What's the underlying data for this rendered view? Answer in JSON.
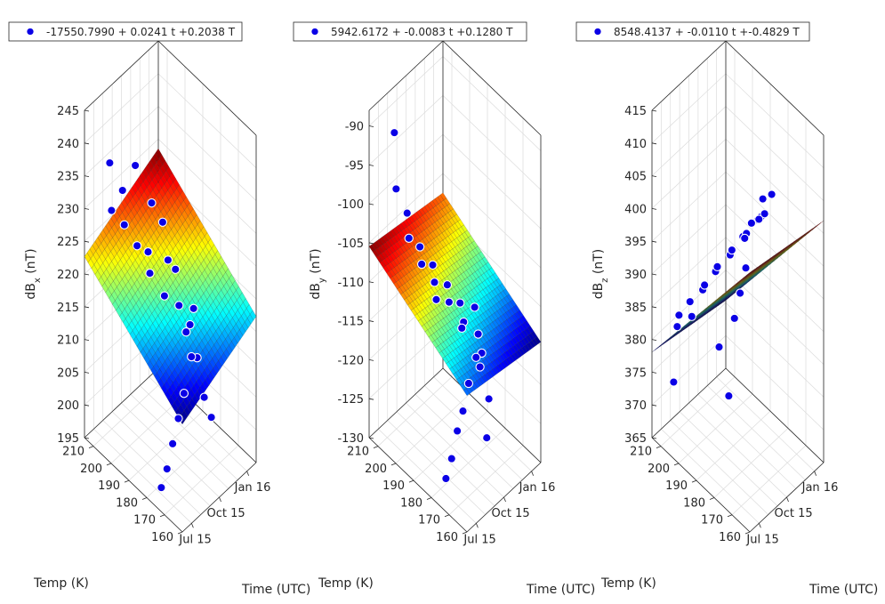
{
  "colors": {
    "points": "#0b00e6",
    "point_edge": "#ffffff",
    "surface_colormap": "jet"
  },
  "shared_axes": {
    "temp_label": "Temp (K)",
    "time_label": "Time (UTC)",
    "temp_ticks": [
      "160",
      "170",
      "180",
      "190",
      "200",
      "210"
    ],
    "time_ticks": [
      "Jul 15",
      "Oct 15",
      "Jan 16"
    ]
  },
  "chart_data": [
    {
      "type": "scatter",
      "subtype": "scatter3d-with-fitted-plane",
      "legend": {
        "text": "-17550.7990 + 0.0241 t +0.2038 T",
        "placement": "top"
      },
      "zlabel": "dB_x (nT)",
      "zlabel_main": "dB",
      "zlabel_sub": "x",
      "zlabel_unit": " (nT)",
      "z_ticks": [
        "195",
        "200",
        "205",
        "210",
        "215",
        "220",
        "225",
        "230",
        "235",
        "240",
        "245"
      ],
      "zlim": [
        195,
        245
      ],
      "xlim": [
        160,
        215
      ],
      "ylim": [
        "Jun 15",
        "Feb 16"
      ],
      "fit": {
        "intercept": -17550.799,
        "coef_t": 0.0241,
        "coef_T": 0.2038
      },
      "points": [
        {
          "T": 205,
          "t": "Jul 15",
          "B": 231
        },
        {
          "T": 204,
          "t": "Aug 15",
          "B": 233
        },
        {
          "T": 203,
          "t": "Aug 15",
          "B": 228
        },
        {
          "T": 202,
          "t": "Sep 15",
          "B": 236
        },
        {
          "T": 201,
          "t": "Sep 15",
          "B": 224
        },
        {
          "T": 200,
          "t": "Oct 15",
          "B": 222
        },
        {
          "T": 199,
          "t": "Oct 15",
          "B": 219
        },
        {
          "T": 197,
          "t": "Nov 15",
          "B": 226
        },
        {
          "T": 196,
          "t": "Nov 15",
          "B": 215
        },
        {
          "T": 195,
          "t": "Dec 15",
          "B": 218
        },
        {
          "T": 193,
          "t": "Dec 15",
          "B": 213
        },
        {
          "T": 192,
          "t": "Jan 16",
          "B": 209
        },
        {
          "T": 190,
          "t": "Jan 16",
          "B": 212
        },
        {
          "T": 188,
          "t": "Jan 16",
          "B": 205
        },
        {
          "T": 186,
          "t": "Dec 15",
          "B": 207
        },
        {
          "T": 185,
          "t": "Nov 15",
          "B": 203
        },
        {
          "T": 183,
          "t": "Oct 15",
          "B": 201
        },
        {
          "T": 181,
          "t": "Sep 15",
          "B": 199
        },
        {
          "T": 179,
          "t": "Aug 15",
          "B": 197
        },
        {
          "T": 177,
          "t": "Jul 15",
          "B": 196
        },
        {
          "T": 206,
          "t": "Jul 15",
          "B": 238
        },
        {
          "T": 198,
          "t": "Oct 15",
          "B": 230
        },
        {
          "T": 194,
          "t": "Nov 15",
          "B": 221
        },
        {
          "T": 189,
          "t": "Dec 15",
          "B": 210
        },
        {
          "T": 184,
          "t": "Jan 16",
          "B": 200
        },
        {
          "T": 180,
          "t": "Jan 16",
          "B": 198
        }
      ]
    },
    {
      "type": "scatter",
      "subtype": "scatter3d-with-fitted-plane",
      "legend": {
        "text": "5942.6172 + -0.0083 t +0.1280 T",
        "placement": "top"
      },
      "zlabel": "dB_y (nT)",
      "zlabel_main": "dB",
      "zlabel_sub": "y",
      "zlabel_unit": " (nT)",
      "z_ticks": [
        "-130",
        "-125",
        "-120",
        "-115",
        "-110",
        "-105",
        "-100",
        "-95",
        "-90"
      ],
      "zlim": [
        -130,
        -88
      ],
      "xlim": [
        160,
        215
      ],
      "ylim": [
        "Jun 15",
        "Feb 16"
      ],
      "fit": {
        "intercept": 5942.6172,
        "coef_t": -0.0083,
        "coef_T": 0.128
      },
      "points": [
        {
          "T": 206,
          "t": "Jul 15",
          "B": -90
        },
        {
          "T": 205,
          "t": "Jul 15",
          "B": -97
        },
        {
          "T": 204,
          "t": "Aug 15",
          "B": -101
        },
        {
          "T": 203,
          "t": "Aug 15",
          "B": -104
        },
        {
          "T": 202,
          "t": "Sep 15",
          "B": -106
        },
        {
          "T": 201,
          "t": "Sep 15",
          "B": -108
        },
        {
          "T": 200,
          "t": "Oct 15",
          "B": -109
        },
        {
          "T": 199,
          "t": "Oct 15",
          "B": -111
        },
        {
          "T": 197,
          "t": "Nov 15",
          "B": -112
        },
        {
          "T": 196,
          "t": "Nov 15",
          "B": -114
        },
        {
          "T": 195,
          "t": "Dec 15",
          "B": -115
        },
        {
          "T": 193,
          "t": "Dec 15",
          "B": -117
        },
        {
          "T": 192,
          "t": "Jan 16",
          "B": -116
        },
        {
          "T": 190,
          "t": "Jan 16",
          "B": -119
        },
        {
          "T": 188,
          "t": "Jan 16",
          "B": -121
        },
        {
          "T": 186,
          "t": "Dec 15",
          "B": -120
        },
        {
          "T": 185,
          "t": "Nov 15",
          "B": -122
        },
        {
          "T": 183,
          "t": "Oct 15",
          "B": -124
        },
        {
          "T": 181,
          "t": "Sep 15",
          "B": -125
        },
        {
          "T": 179,
          "t": "Aug 15",
          "B": -127
        },
        {
          "T": 177,
          "t": "Jul 15",
          "B": -128
        },
        {
          "T": 198,
          "t": "Oct 15",
          "B": -113
        },
        {
          "T": 194,
          "t": "Dec 15",
          "B": -118
        },
        {
          "T": 189,
          "t": "Jan 16",
          "B": -123
        },
        {
          "T": 184,
          "t": "Jan 16",
          "B": -126
        },
        {
          "T": 180,
          "t": "Dec 15",
          "B": -129
        }
      ]
    },
    {
      "type": "scatter",
      "subtype": "scatter3d-with-fitted-plane",
      "legend": {
        "text": "8548.4137 + -0.0110 t +-0.4829 T",
        "placement": "top"
      },
      "zlabel": "dB_z (nT)",
      "zlabel_main": "dB",
      "zlabel_sub": "z",
      "zlabel_unit": " (nT)",
      "z_ticks": [
        "365",
        "370",
        "375",
        "380",
        "385",
        "390",
        "395",
        "400",
        "405",
        "410",
        "415"
      ],
      "zlim": [
        365,
        415
      ],
      "xlim": [
        160,
        215
      ],
      "ylim": [
        "Jun 15",
        "Feb 16"
      ],
      "fit": {
        "intercept": 8548.4137,
        "coef_t": -0.011,
        "coef_T": -0.4829
      },
      "points": [
        {
          "T": 206,
          "t": "Jul 15",
          "B": 383
        },
        {
          "T": 205,
          "t": "Jul 15",
          "B": 385
        },
        {
          "T": 204,
          "t": "Aug 15",
          "B": 386
        },
        {
          "T": 203,
          "t": "Aug 15",
          "B": 384
        },
        {
          "T": 202,
          "t": "Sep 15",
          "B": 387
        },
        {
          "T": 201,
          "t": "Sep 15",
          "B": 388
        },
        {
          "T": 200,
          "t": "Oct 15",
          "B": 389
        },
        {
          "T": 199,
          "t": "Oct 15",
          "B": 390
        },
        {
          "T": 197,
          "t": "Nov 15",
          "B": 391
        },
        {
          "T": 196,
          "t": "Nov 15",
          "B": 392
        },
        {
          "T": 195,
          "t": "Dec 15",
          "B": 393
        },
        {
          "T": 193,
          "t": "Dec 15",
          "B": 394
        },
        {
          "T": 192,
          "t": "Jan 16",
          "B": 395
        },
        {
          "T": 190,
          "t": "Jan 16",
          "B": 396
        },
        {
          "T": 188,
          "t": "Jan 16",
          "B": 397
        },
        {
          "T": 186,
          "t": "Dec 15",
          "B": 398
        },
        {
          "T": 185,
          "t": "Nov 15",
          "B": 399
        },
        {
          "T": 183,
          "t": "Oct 15",
          "B": 394
        },
        {
          "T": 181,
          "t": "Sep 15",
          "B": 392
        },
        {
          "T": 179,
          "t": "Aug 15",
          "B": 390
        },
        {
          "T": 177,
          "t": "Jul 15",
          "B": 380
        },
        {
          "T": 198,
          "t": "Oct 15",
          "B": 378
        },
        {
          "T": 194,
          "t": "Dec 15",
          "B": 393
        },
        {
          "T": 189,
          "t": "Jan 16",
          "B": 399
        },
        {
          "T": 184,
          "t": "Jan 16",
          "B": 401
        },
        {
          "T": 208,
          "t": "Jul 15",
          "B": 374
        }
      ]
    }
  ]
}
